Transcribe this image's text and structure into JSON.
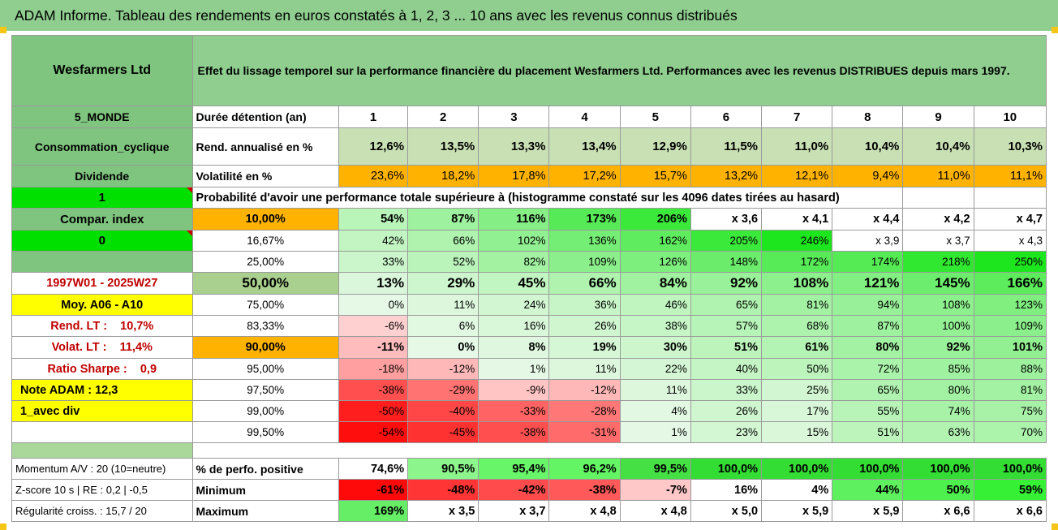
{
  "title": "ADAM Informe. Tableau des rendements en euros constatés à 1, 2, 3 ... 10 ans avec les revenus connus distribués",
  "company": "Wesfarmers Ltd",
  "description": "Effet du lissage temporel sur la performance financière du placement Wesfarmers Ltd. Performances avec les revenus DISTRIBUES depuis mars 1997.",
  "left": {
    "region": "5_MONDE",
    "sector": "Consommation_cyclique",
    "dividend_label": "Dividende",
    "flag1": "1",
    "compar_index": "Compar. index",
    "flag0": "0",
    "period": "1997W01 - 2025W27",
    "avg_range": "Moy. A06 - A10",
    "rend_lt": "Rend. LT :    10,7%",
    "volat_lt": "Volat. LT :    11,4%",
    "sharpe": "Ratio Sharpe :    0,9",
    "note": "Note ADAM : 12,3",
    "div_mode": "1_avec div",
    "momentum": "Momentum A/V : 20 (10=neutre)",
    "zscore": "Z-score 10 s | RE : 0,2 | -0,5",
    "regularite": "Régularité croiss. : 15,7 / 20"
  },
  "table": {
    "duration_label": "Durée détention (an)",
    "years": [
      "1",
      "2",
      "3",
      "4",
      "5",
      "6",
      "7",
      "8",
      "9",
      "10"
    ],
    "rend_label": "Rend. annualisé en %",
    "rend": [
      "12,6%",
      "13,5%",
      "13,3%",
      "13,4%",
      "12,9%",
      "11,5%",
      "11,0%",
      "10,4%",
      "10,4%",
      "10,3%"
    ],
    "vol_label": "Volatilité en %",
    "vol": [
      "23,6%",
      "18,2%",
      "17,8%",
      "17,2%",
      "15,7%",
      "13,2%",
      "12,1%",
      "9,4%",
      "11,0%",
      "11,1%"
    ],
    "prob_label": "Probabilité d'avoir une performance totale supérieure à (histogramme constaté sur les 4096 dates tirées au hasard)",
    "percentiles": [
      {
        "p": "10,00%",
        "v": [
          "54%",
          "87%",
          "116%",
          "173%",
          "206%",
          "x 3,6",
          "x 4,1",
          "x 4,4",
          "x 4,2",
          "x 4,7"
        ]
      },
      {
        "p": "16,67%",
        "v": [
          "42%",
          "66%",
          "102%",
          "136%",
          "162%",
          "205%",
          "246%",
          "x 3,9",
          "x 3,7",
          "x 4,3"
        ]
      },
      {
        "p": "25,00%",
        "v": [
          "33%",
          "52%",
          "82%",
          "109%",
          "126%",
          "148%",
          "172%",
          "174%",
          "218%",
          "250%"
        ]
      },
      {
        "p": "50,00%",
        "v": [
          "13%",
          "29%",
          "45%",
          "66%",
          "84%",
          "92%",
          "108%",
          "121%",
          "145%",
          "166%"
        ]
      },
      {
        "p": "75,00%",
        "v": [
          "0%",
          "11%",
          "24%",
          "36%",
          "46%",
          "65%",
          "81%",
          "94%",
          "108%",
          "123%"
        ]
      },
      {
        "p": "83,33%",
        "v": [
          "-6%",
          "6%",
          "16%",
          "26%",
          "38%",
          "57%",
          "68%",
          "87%",
          "100%",
          "109%"
        ]
      },
      {
        "p": "90,00%",
        "v": [
          "-11%",
          "0%",
          "8%",
          "19%",
          "30%",
          "51%",
          "61%",
          "80%",
          "92%",
          "101%"
        ]
      },
      {
        "p": "95,00%",
        "v": [
          "-18%",
          "-12%",
          "1%",
          "11%",
          "22%",
          "40%",
          "50%",
          "72%",
          "85%",
          "88%"
        ]
      },
      {
        "p": "97,50%",
        "v": [
          "-38%",
          "-29%",
          "-9%",
          "-12%",
          "11%",
          "33%",
          "25%",
          "65%",
          "80%",
          "81%"
        ]
      },
      {
        "p": "99,00%",
        "v": [
          "-50%",
          "-40%",
          "-33%",
          "-28%",
          "4%",
          "26%",
          "17%",
          "55%",
          "74%",
          "75%"
        ]
      },
      {
        "p": "99,50%",
        "v": [
          "-54%",
          "-45%",
          "-38%",
          "-31%",
          "1%",
          "23%",
          "15%",
          "51%",
          "63%",
          "70%"
        ]
      }
    ],
    "pos_label": "% de perfo. positive",
    "pos": [
      "74,6%",
      "90,5%",
      "95,4%",
      "96,2%",
      "99,5%",
      "100,0%",
      "100,0%",
      "100,0%",
      "100,0%",
      "100,0%"
    ],
    "min_label": "Minimum",
    "min": [
      "-61%",
      "-48%",
      "-42%",
      "-38%",
      "-7%",
      "16%",
      "4%",
      "44%",
      "50%",
      "59%"
    ],
    "max_label": "Maximum",
    "max": [
      "169%",
      "x 3,5",
      "x 3,7",
      "x 4,8",
      "x 4,8",
      "x 5,0",
      "x 5,9",
      "x 5,9",
      "x 6,6",
      "x 6,6"
    ]
  },
  "colors": {
    "header_green": "#8fce8f",
    "label_green": "#7fc57f",
    "orange": "#ffb300",
    "bright_green": "#00e000",
    "yellow": "#ffff00",
    "text_red": "#c00000"
  }
}
